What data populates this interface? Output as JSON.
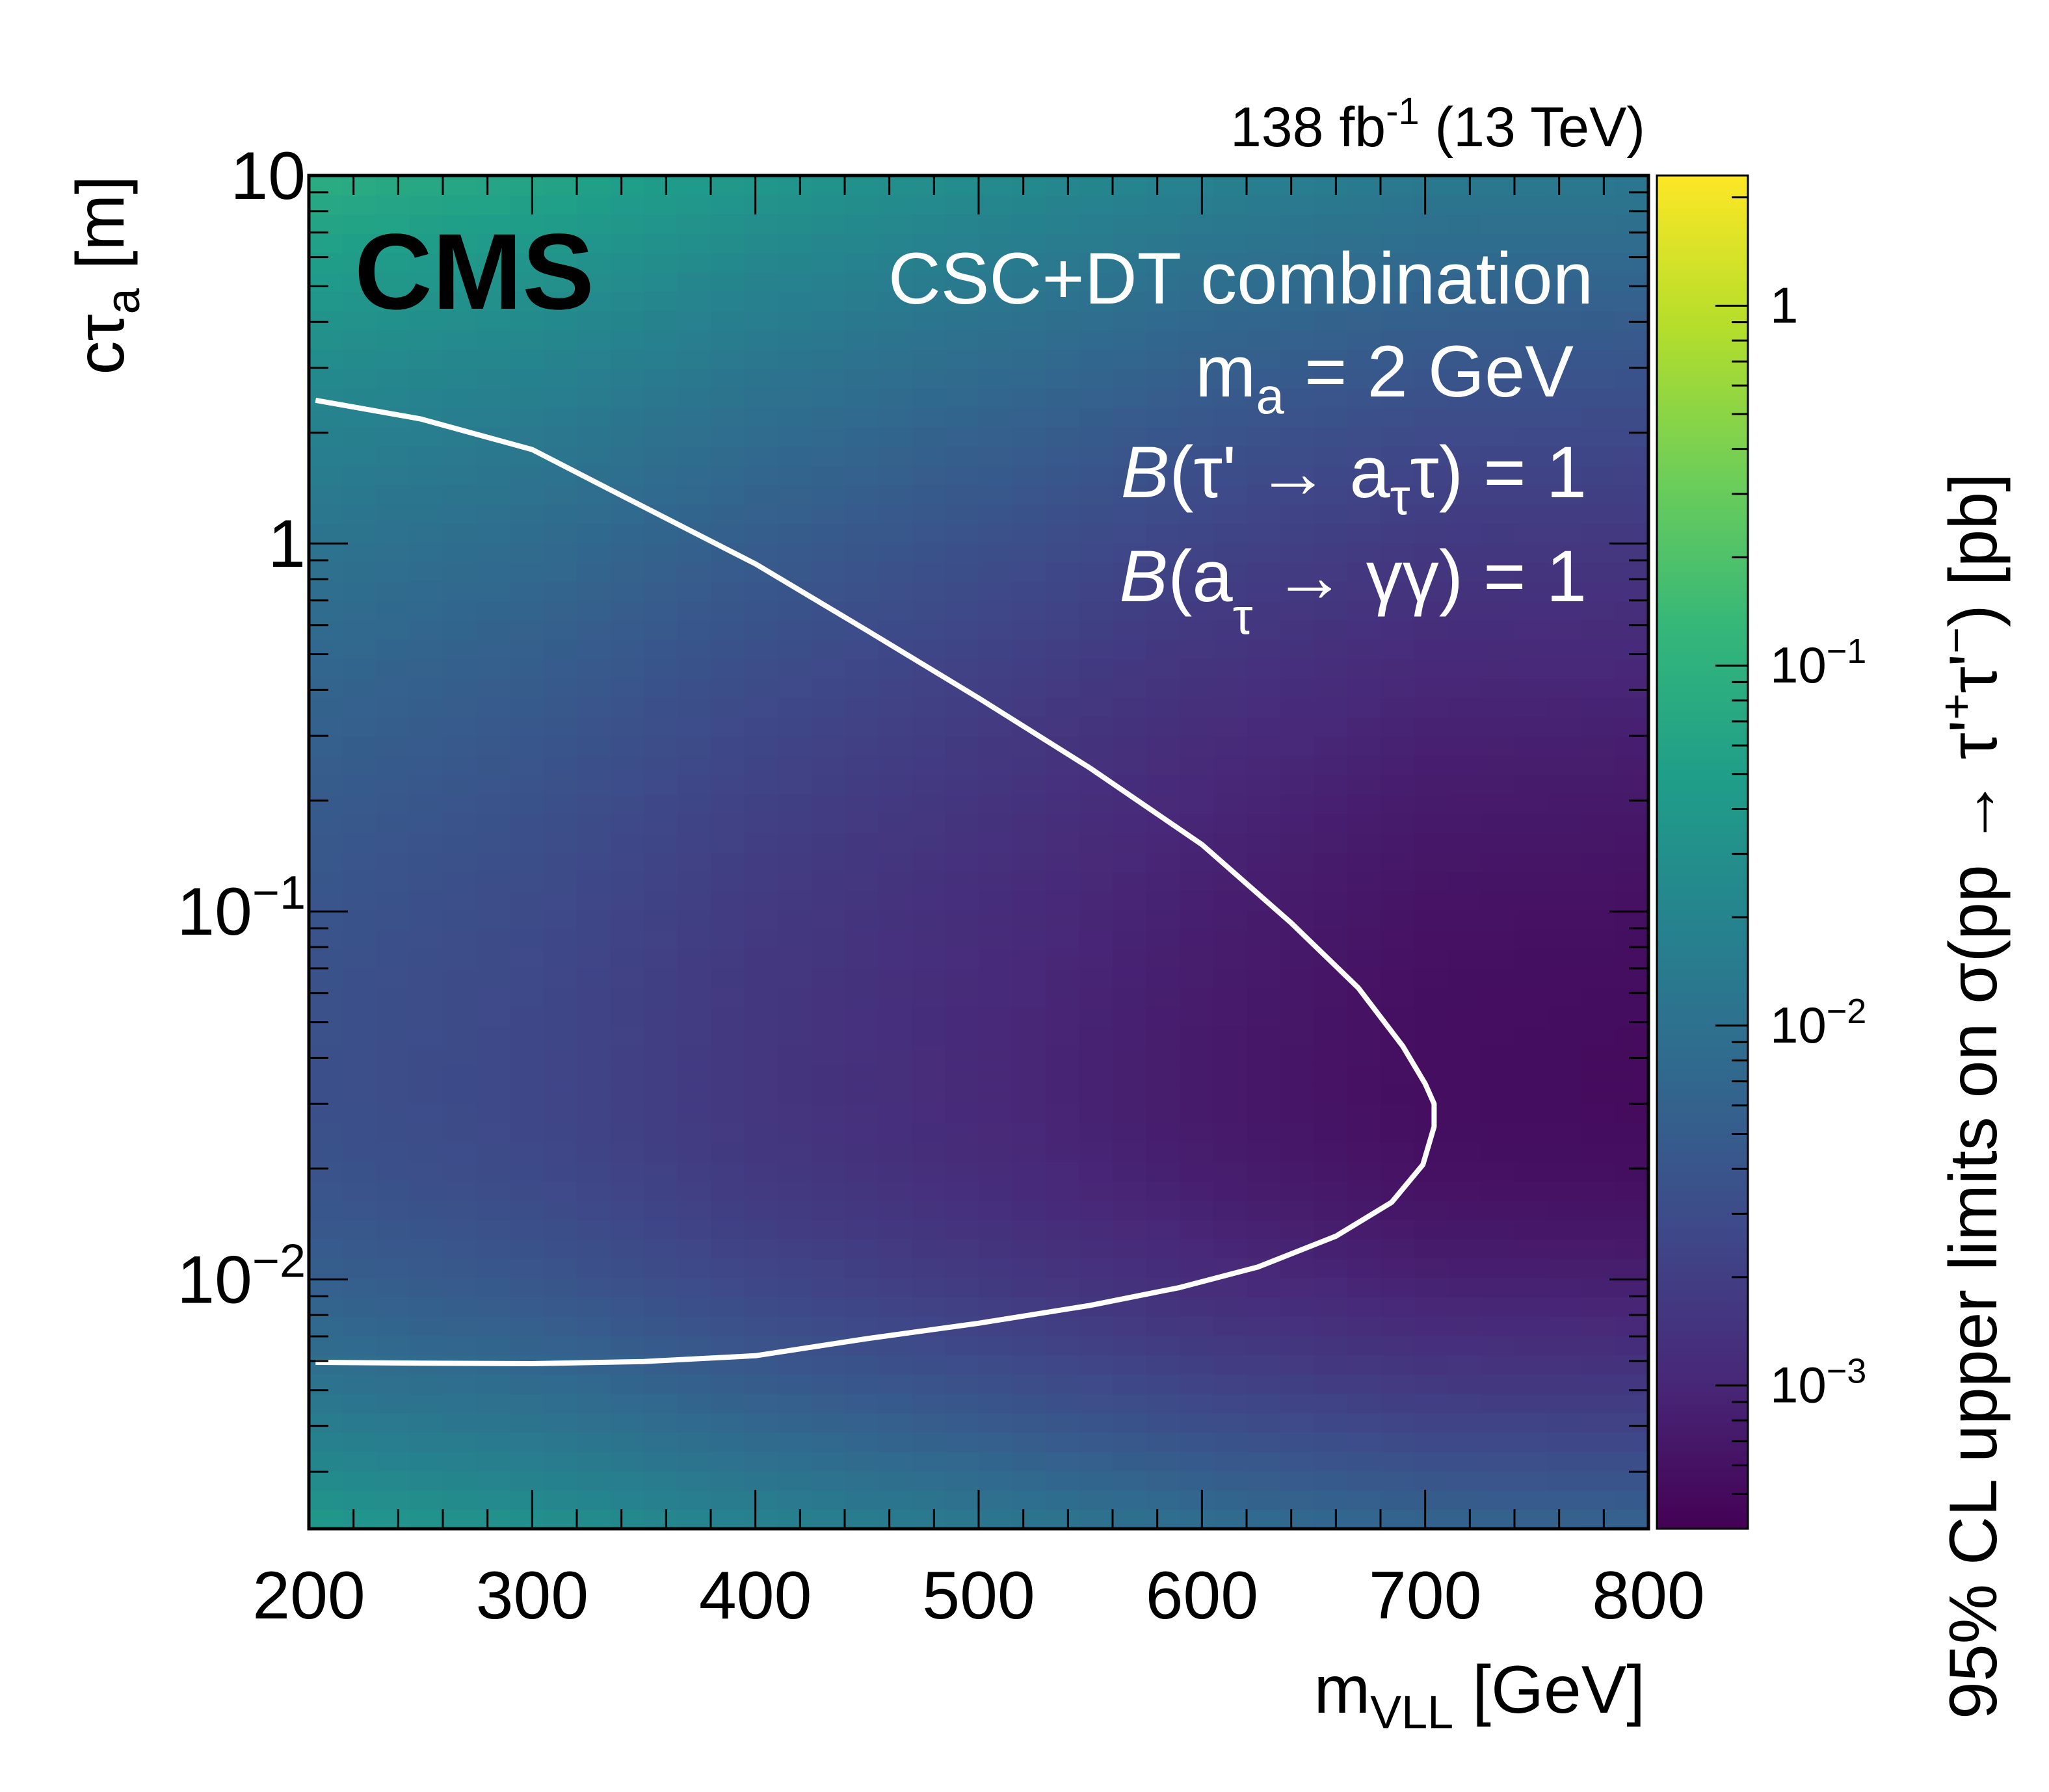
{
  "chart_data": {
    "type": "heatmap",
    "lumi_label": {
      "lumi": "138 fb",
      "sup": "-1",
      "energy": " (13 TeV)"
    },
    "experiment_label": "CMS",
    "annotations": [
      {
        "text": "CSC+DT combination"
      },
      {
        "pre": "m",
        "sub": "a",
        "post": " = 2 GeV"
      },
      {
        "ital": "B",
        "pre": "(τ' → a",
        "sub": "τ",
        "post": "τ) = 1"
      },
      {
        "ital": "B",
        "pre": "(a",
        "sub": "τ",
        "post": " → γγ) = 1"
      }
    ],
    "xaxis": {
      "label_main": "m",
      "label_sub": "VLL",
      "label_unit": " [GeV]",
      "range": [
        200,
        800
      ],
      "ticks": [
        {
          "value": 200,
          "label": "200"
        },
        {
          "value": 300,
          "label": "300"
        },
        {
          "value": 400,
          "label": "400"
        },
        {
          "value": 500,
          "label": "500"
        },
        {
          "value": 600,
          "label": "600"
        },
        {
          "value": 700,
          "label": "700"
        },
        {
          "value": 800,
          "label": "800"
        }
      ]
    },
    "yaxis": {
      "label_main": "cτ",
      "label_sub": "a",
      "label_unit": " [m]",
      "scale": "log",
      "range": [
        0.0021,
        10
      ],
      "ticks": [
        {
          "value": 10,
          "base": "10",
          "exp": ""
        },
        {
          "value": 1,
          "base": "1",
          "exp": ""
        },
        {
          "value": 0.1,
          "base": "10",
          "exp": "−1"
        },
        {
          "value": 0.01,
          "base": "10",
          "exp": "−2"
        }
      ]
    },
    "zaxis": {
      "label_text": "95% CL upper limits on σ(pp → τ'",
      "label_sup": "+",
      "label_mid": "τ'",
      "label_sup2": "−",
      "label_end": ") [pb]",
      "scale": "log",
      "range": [
        0.0004,
        2.3
      ],
      "ticks": [
        {
          "value": 1,
          "base": "1",
          "exp": ""
        },
        {
          "value": 0.1,
          "base": "10",
          "exp": "−1"
        },
        {
          "value": 0.01,
          "base": "10",
          "exp": "−2"
        },
        {
          "value": 0.001,
          "base": "10",
          "exp": "−3"
        }
      ],
      "colormap": [
        "#440154",
        "#482878",
        "#3e4989",
        "#31688e",
        "#26828e",
        "#1f9e89",
        "#35b779",
        "#6ece58",
        "#b5de2b",
        "#fde725"
      ]
    },
    "limit_contour": {
      "color": "#ffffff",
      "points": [
        [
          203,
          2.45
        ],
        [
          250,
          2.18
        ],
        [
          300,
          1.8
        ],
        [
          340,
          1.35
        ],
        [
          400,
          0.88
        ],
        [
          450,
          0.58
        ],
        [
          500,
          0.38
        ],
        [
          550,
          0.245
        ],
        [
          600,
          0.152
        ],
        [
          640,
          0.093
        ],
        [
          670,
          0.062
        ],
        [
          690,
          0.043
        ],
        [
          700,
          0.034
        ],
        [
          704,
          0.03
        ],
        [
          704,
          0.026
        ],
        [
          699,
          0.0205
        ],
        [
          685,
          0.0162
        ],
        [
          660,
          0.0131
        ],
        [
          625,
          0.0108
        ],
        [
          590,
          0.0095
        ],
        [
          550,
          0.0085
        ],
        [
          500,
          0.0076
        ],
        [
          450,
          0.0069
        ],
        [
          400,
          0.0062
        ],
        [
          350,
          0.00598
        ],
        [
          300,
          0.0059
        ],
        [
          250,
          0.00592
        ],
        [
          203,
          0.00595
        ]
      ]
    },
    "heatmap_model": {
      "x_bins": [
        200,
        300,
        400,
        500,
        600,
        700,
        800
      ],
      "min_limit_by_mass_pb": [
        0.0035,
        0.0026,
        0.0016,
        0.0011,
        0.00075,
        0.00055,
        0.00052
      ],
      "optimal_ctau_m": 0.033,
      "sigma_decades_short": 0.6,
      "sigma_decades_long": 1.1
    }
  }
}
